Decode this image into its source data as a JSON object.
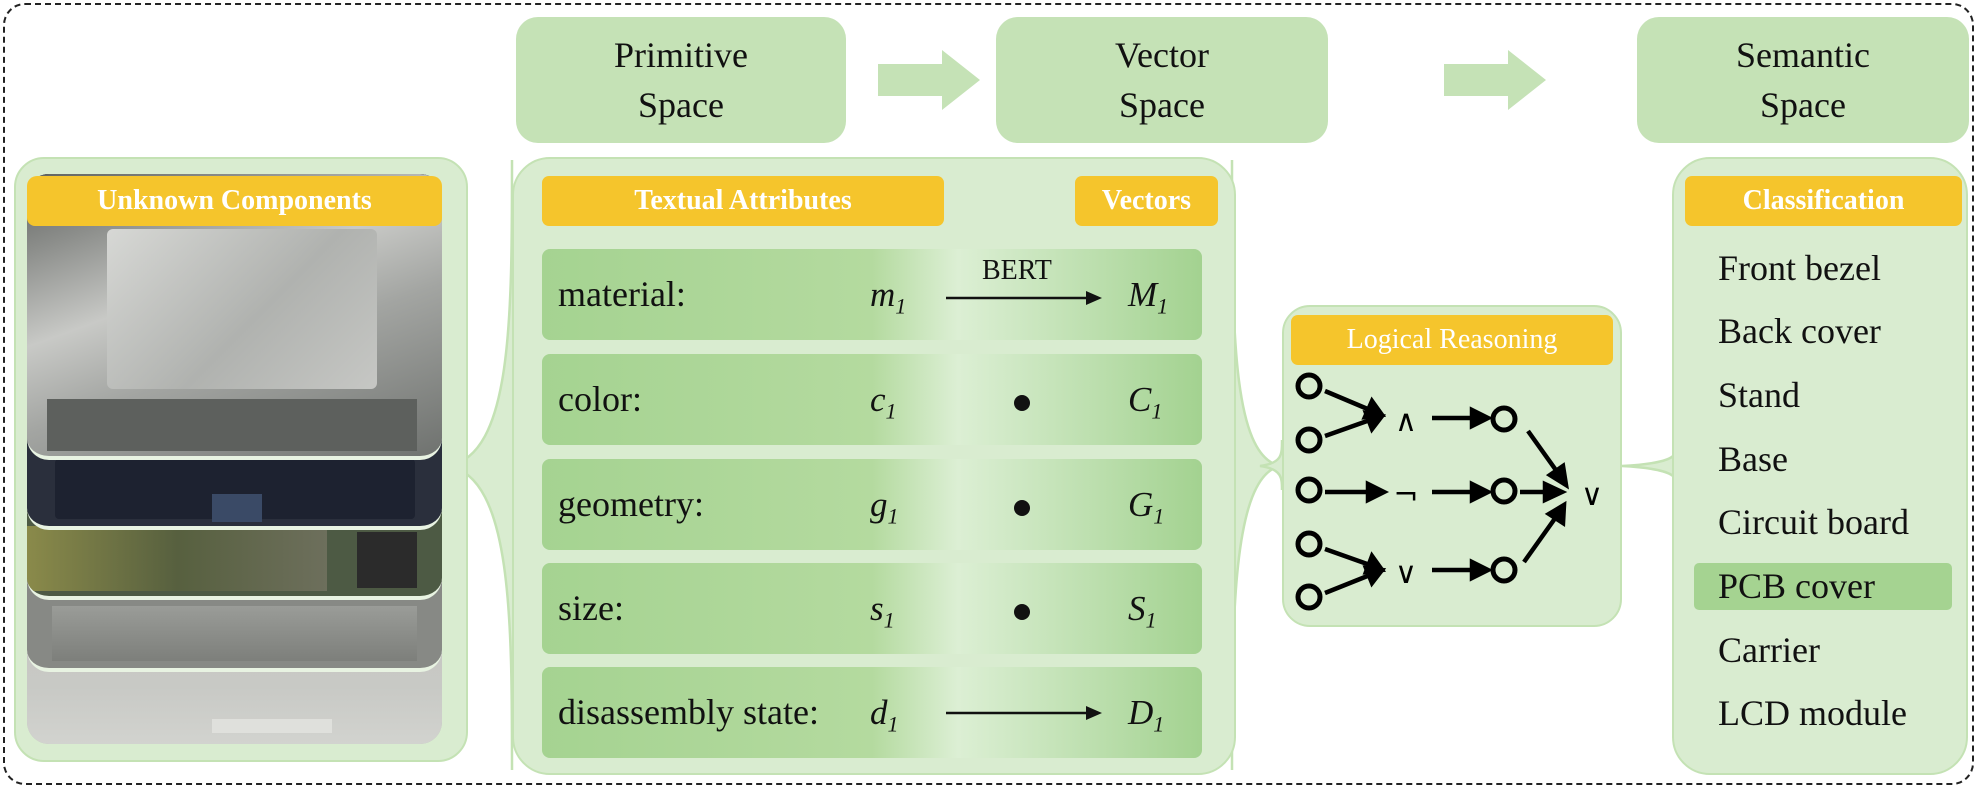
{
  "spaces": {
    "primitive": [
      "Primitive",
      "Space"
    ],
    "vector": [
      "Vector",
      "Space"
    ],
    "semantic": [
      "Semantic",
      "Space"
    ]
  },
  "left_panel": {
    "title": "Unknown Components"
  },
  "middle_panel": {
    "title_attributes": "Textual Attributes",
    "title_vectors": "Vectors",
    "bert_label": "BERT",
    "rows": [
      {
        "label": "material:",
        "var": "m",
        "vec": "M",
        "sub": "1",
        "link": "arrow"
      },
      {
        "label": "color:",
        "var": "c",
        "vec": "C",
        "sub": "1",
        "link": "dot"
      },
      {
        "label": "geometry:",
        "var": "g",
        "vec": "G",
        "sub": "1",
        "link": "dot"
      },
      {
        "label": "size:",
        "var": "s",
        "vec": "S",
        "sub": "1",
        "link": "dot"
      },
      {
        "label": "disassembly state:",
        "var": "d",
        "vec": "D",
        "sub": "1",
        "link": "arrow"
      }
    ]
  },
  "reasoning_panel": {
    "title": "Logical Reasoning",
    "operators": {
      "and": "∧",
      "not": "¬",
      "or_mid": "∨",
      "or_final": "∨"
    }
  },
  "classification_panel": {
    "title": "Classification",
    "items": [
      "Front bezel",
      "Back cover",
      "Stand",
      "Base",
      "Circuit board",
      "PCB cover",
      "Carrier",
      "LCD module"
    ],
    "highlighted_index": 5
  },
  "colors": {
    "space_box": "#c5e2b6",
    "panel": "#d9ecd0",
    "tag": "#f5c52c",
    "row_green": "#a5d391",
    "highlight": "#a5d391"
  }
}
